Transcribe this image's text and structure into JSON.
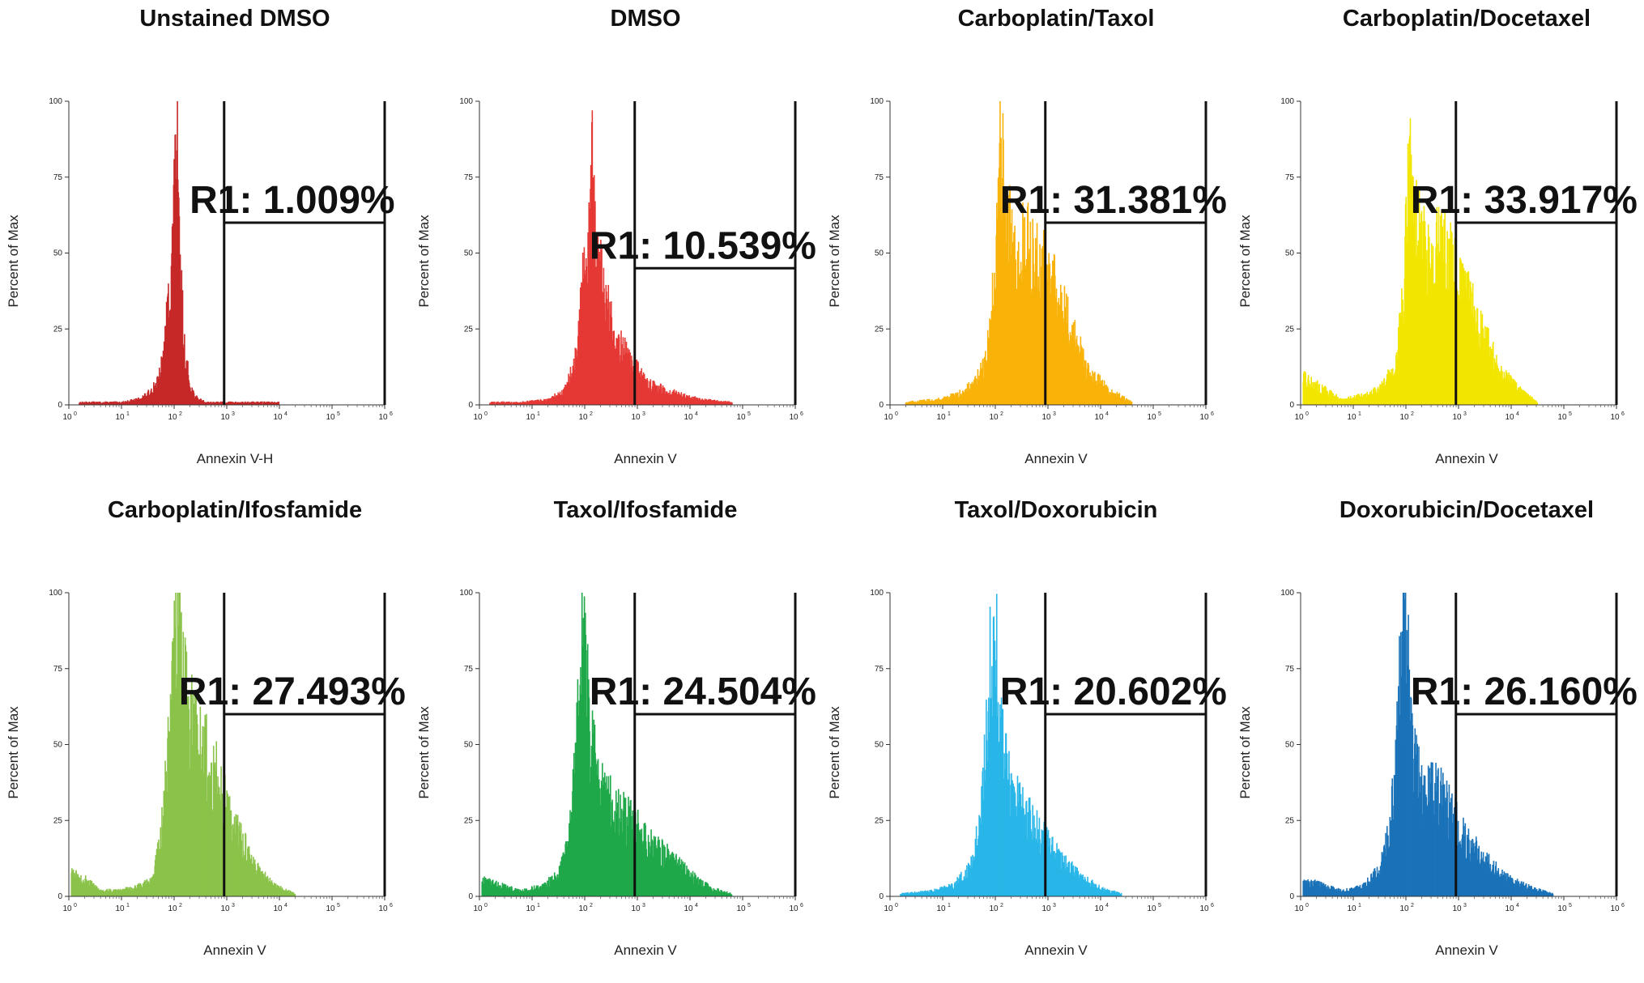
{
  "chart_data": [
    {
      "type": "histogram",
      "title": "Unstained DMSO",
      "xlabel": "Annexin V-H",
      "ylabel": "Percent of Max",
      "color": "#c62828",
      "xscale": "log",
      "xlim_log10": [
        0,
        6
      ],
      "ylim": [
        0,
        100
      ],
      "yticks": [
        "0",
        "25",
        "50",
        "75",
        "100"
      ],
      "xticks": [
        {
          "base": "10",
          "exp": "0"
        },
        {
          "base": "10",
          "exp": "1"
        },
        {
          "base": "10",
          "exp": "2"
        },
        {
          "base": "10",
          "exp": "3"
        },
        {
          "base": "10",
          "exp": "4"
        },
        {
          "base": "10",
          "exp": "5"
        },
        {
          "base": "10",
          "exp": "6"
        }
      ],
      "gate": {
        "label": "R1: 1.009%",
        "name": "R1",
        "percent": 1.009,
        "x_start_log10": 2.95,
        "level": 60
      },
      "histogram": {
        "x_log10": [
          0.2,
          0.6,
          1.0,
          1.3,
          1.5,
          1.7,
          1.8,
          1.9,
          2.0,
          2.05,
          2.1,
          2.2,
          2.3,
          2.4,
          2.6,
          3.3,
          4.0
        ],
        "y": [
          1,
          1,
          1,
          2,
          4,
          9,
          18,
          40,
          75,
          100,
          55,
          20,
          8,
          3,
          1,
          1,
          1
        ]
      }
    },
    {
      "type": "histogram",
      "title": "DMSO",
      "xlabel": "Annexin V",
      "ylabel": "Percent of Max",
      "color": "#e53935",
      "xscale": "log",
      "xlim_log10": [
        0,
        6
      ],
      "ylim": [
        0,
        100
      ],
      "yticks": [
        "0",
        "25",
        "50",
        "75",
        "100"
      ],
      "xticks": [
        {
          "base": "10",
          "exp": "0"
        },
        {
          "base": "10",
          "exp": "1"
        },
        {
          "base": "10",
          "exp": "2"
        },
        {
          "base": "10",
          "exp": "3"
        },
        {
          "base": "10",
          "exp": "4"
        },
        {
          "base": "10",
          "exp": "5"
        },
        {
          "base": "10",
          "exp": "6"
        }
      ],
      "gate": {
        "label": "R1: 10.539%",
        "name": "R1",
        "percent": 10.539,
        "x_start_log10": 2.95,
        "level": 45
      },
      "histogram": {
        "x_log10": [
          0.2,
          0.8,
          1.3,
          1.6,
          1.8,
          2.0,
          2.1,
          2.15,
          2.2,
          2.4,
          2.6,
          2.9,
          3.2,
          3.6,
          4.2,
          4.8
        ],
        "y": [
          1,
          1,
          2,
          5,
          15,
          50,
          75,
          100,
          60,
          38,
          25,
          15,
          8,
          5,
          2,
          1
        ]
      }
    },
    {
      "type": "histogram",
      "title": "Carboplatin/Taxol",
      "xlabel": "Annexin V",
      "ylabel": "Percent of Max",
      "color": "#f9b208",
      "xscale": "log",
      "xlim_log10": [
        0,
        6
      ],
      "ylim": [
        0,
        100
      ],
      "yticks": [
        "0",
        "25",
        "50",
        "75",
        "100"
      ],
      "xticks": [
        {
          "base": "10",
          "exp": "0"
        },
        {
          "base": "10",
          "exp": "1"
        },
        {
          "base": "10",
          "exp": "2"
        },
        {
          "base": "10",
          "exp": "3"
        },
        {
          "base": "10",
          "exp": "4"
        },
        {
          "base": "10",
          "exp": "5"
        },
        {
          "base": "10",
          "exp": "6"
        }
      ],
      "gate": {
        "label": "R1: 31.381%",
        "name": "R1",
        "percent": 31.381,
        "x_start_log10": 2.95,
        "level": 60
      },
      "histogram": {
        "x_log10": [
          0.3,
          0.9,
          1.3,
          1.6,
          1.8,
          1.9,
          2.0,
          2.1,
          2.2,
          2.4,
          2.6,
          2.8,
          3.0,
          3.2,
          3.5,
          3.8,
          4.2,
          4.6
        ],
        "y": [
          1,
          2,
          4,
          8,
          15,
          28,
          55,
          95,
          70,
          55,
          60,
          55,
          48,
          40,
          25,
          12,
          5,
          1
        ]
      }
    },
    {
      "type": "histogram",
      "title": "Carboplatin/Docetaxel",
      "xlabel": "Annexin V",
      "ylabel": "Percent of Max",
      "color": "#f2e600",
      "xscale": "log",
      "xlim_log10": [
        0,
        6
      ],
      "ylim": [
        0,
        100
      ],
      "yticks": [
        "0",
        "25",
        "50",
        "75",
        "100"
      ],
      "xticks": [
        {
          "base": "10",
          "exp": "0"
        },
        {
          "base": "10",
          "exp": "1"
        },
        {
          "base": "10",
          "exp": "2"
        },
        {
          "base": "10",
          "exp": "3"
        },
        {
          "base": "10",
          "exp": "4"
        },
        {
          "base": "10",
          "exp": "5"
        },
        {
          "base": "10",
          "exp": "6"
        }
      ],
      "gate": {
        "label": "R1: 33.917%",
        "name": "R1",
        "percent": 33.917,
        "x_start_log10": 2.95,
        "level": 60
      },
      "histogram": {
        "x_log10": [
          0.05,
          0.8,
          1.3,
          1.6,
          1.8,
          1.9,
          2.0,
          2.1,
          2.2,
          2.4,
          2.6,
          2.8,
          3.0,
          3.2,
          3.5,
          3.8,
          4.2,
          4.5
        ],
        "y": [
          10,
          2,
          4,
          8,
          15,
          30,
          60,
          100,
          70,
          52,
          58,
          55,
          45,
          38,
          25,
          12,
          5,
          1
        ]
      }
    },
    {
      "type": "histogram",
      "title": "Carboplatin/Ifosfamide",
      "xlabel": "Annexin V",
      "ylabel": "Percent of Max",
      "color": "#8bc34a",
      "xscale": "log",
      "xlim_log10": [
        0,
        6
      ],
      "ylim": [
        0,
        100
      ],
      "yticks": [
        "0",
        "25",
        "50",
        "75",
        "100"
      ],
      "xticks": [
        {
          "base": "10",
          "exp": "0"
        },
        {
          "base": "10",
          "exp": "1"
        },
        {
          "base": "10",
          "exp": "2"
        },
        {
          "base": "10",
          "exp": "3"
        },
        {
          "base": "10",
          "exp": "4"
        },
        {
          "base": "10",
          "exp": "5"
        },
        {
          "base": "10",
          "exp": "6"
        }
      ],
      "gate": {
        "label": "R1: 27.493%",
        "name": "R1",
        "percent": 27.493,
        "x_start_log10": 2.95,
        "level": 60
      },
      "histogram": {
        "x_log10": [
          0.05,
          0.6,
          1.2,
          1.6,
          1.8,
          1.9,
          2.0,
          2.1,
          2.2,
          2.4,
          2.6,
          2.8,
          3.0,
          3.2,
          3.5,
          3.9,
          4.3
        ],
        "y": [
          10,
          2,
          3,
          6,
          30,
          60,
          90,
          100,
          75,
          60,
          55,
          45,
          35,
          25,
          12,
          4,
          1
        ]
      }
    },
    {
      "type": "histogram",
      "title": "Taxol/Ifosfamide",
      "xlabel": "Annexin V",
      "ylabel": "Percent of Max",
      "color": "#1fa84a",
      "xscale": "log",
      "xlim_log10": [
        0,
        6
      ],
      "ylim": [
        0,
        100
      ],
      "yticks": [
        "0",
        "25",
        "50",
        "75",
        "100"
      ],
      "xticks": [
        {
          "base": "10",
          "exp": "0"
        },
        {
          "base": "10",
          "exp": "1"
        },
        {
          "base": "10",
          "exp": "2"
        },
        {
          "base": "10",
          "exp": "3"
        },
        {
          "base": "10",
          "exp": "4"
        },
        {
          "base": "10",
          "exp": "5"
        },
        {
          "base": "10",
          "exp": "6"
        }
      ],
      "gate": {
        "label": "R1: 24.504%",
        "name": "R1",
        "percent": 24.504,
        "x_start_log10": 2.95,
        "level": 60
      },
      "histogram": {
        "x_log10": [
          0.05,
          0.8,
          1.2,
          1.5,
          1.7,
          1.8,
          1.9,
          2.0,
          2.1,
          2.3,
          2.6,
          2.9,
          3.2,
          3.6,
          4.0,
          4.4,
          4.8
        ],
        "y": [
          6,
          2,
          4,
          8,
          20,
          45,
          80,
          100,
          60,
          40,
          32,
          28,
          20,
          15,
          8,
          3,
          1
        ]
      }
    },
    {
      "type": "histogram",
      "title": "Taxol/Doxorubicin",
      "xlabel": "Annexin V",
      "ylabel": "Percent of Max",
      "color": "#29b6e8",
      "xscale": "log",
      "xlim_log10": [
        0,
        6
      ],
      "ylim": [
        0,
        100
      ],
      "yticks": [
        "0",
        "25",
        "50",
        "75",
        "100"
      ],
      "xticks": [
        {
          "base": "10",
          "exp": "0"
        },
        {
          "base": "10",
          "exp": "1"
        },
        {
          "base": "10",
          "exp": "2"
        },
        {
          "base": "10",
          "exp": "3"
        },
        {
          "base": "10",
          "exp": "4"
        },
        {
          "base": "10",
          "exp": "5"
        },
        {
          "base": "10",
          "exp": "6"
        }
      ],
      "gate": {
        "label": "R1: 20.602%",
        "name": "R1",
        "percent": 20.602,
        "x_start_log10": 2.95,
        "level": 60
      },
      "histogram": {
        "x_log10": [
          0.2,
          0.8,
          1.2,
          1.5,
          1.7,
          1.8,
          1.9,
          2.0,
          2.1,
          2.3,
          2.6,
          2.9,
          3.2,
          3.6,
          4.0,
          4.4
        ],
        "y": [
          1,
          2,
          4,
          10,
          25,
          50,
          85,
          100,
          60,
          38,
          30,
          22,
          15,
          8,
          3,
          1
        ]
      }
    },
    {
      "type": "histogram",
      "title": "Doxorubicin/Docetaxel",
      "xlabel": "Annexin V",
      "ylabel": "Percent of Max",
      "color": "#1a72b8",
      "xscale": "log",
      "xlim_log10": [
        0,
        6
      ],
      "ylim": [
        0,
        100
      ],
      "yticks": [
        "0",
        "25",
        "50",
        "75",
        "100"
      ],
      "xticks": [
        {
          "base": "10",
          "exp": "0"
        },
        {
          "base": "10",
          "exp": "1"
        },
        {
          "base": "10",
          "exp": "2"
        },
        {
          "base": "10",
          "exp": "3"
        },
        {
          "base": "10",
          "exp": "4"
        },
        {
          "base": "10",
          "exp": "5"
        },
        {
          "base": "10",
          "exp": "6"
        }
      ],
      "gate": {
        "label": "R1: 26.160%",
        "name": "R1",
        "percent": 26.16,
        "x_start_log10": 2.95,
        "level": 60
      },
      "histogram": {
        "x_log10": [
          0.05,
          0.8,
          1.2,
          1.5,
          1.7,
          1.8,
          1.9,
          2.0,
          2.1,
          2.3,
          2.6,
          2.9,
          3.2,
          3.6,
          4.0,
          4.4,
          4.8
        ],
        "y": [
          6,
          2,
          4,
          10,
          25,
          50,
          85,
          100,
          60,
          40,
          40,
          30,
          20,
          12,
          6,
          3,
          1
        ]
      }
    }
  ]
}
